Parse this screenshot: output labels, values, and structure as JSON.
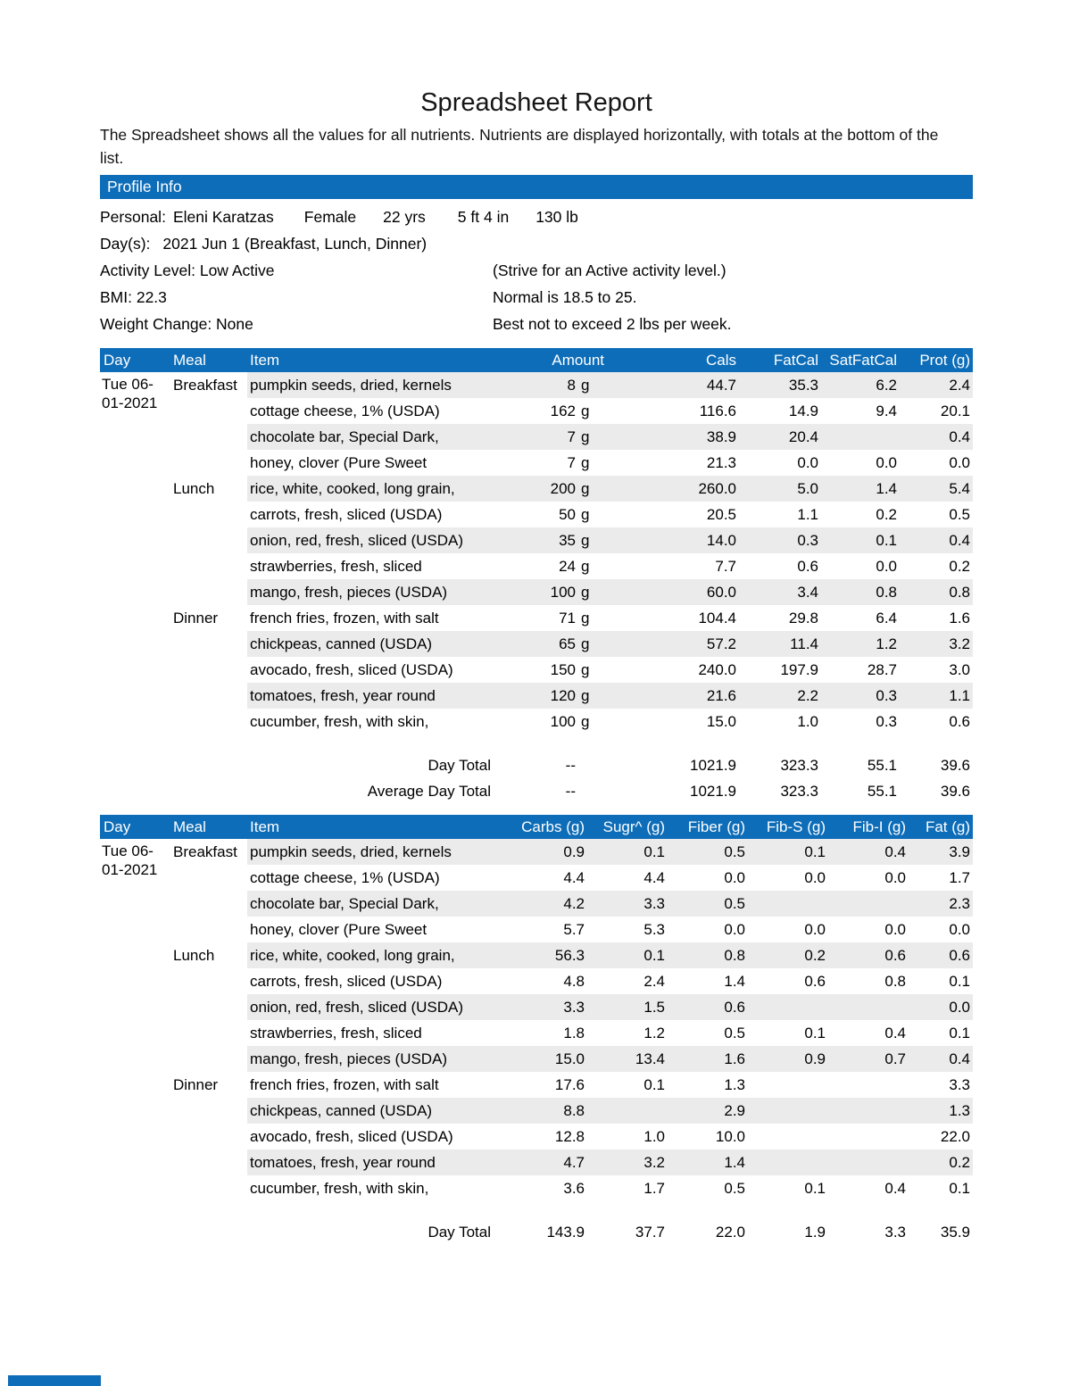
{
  "page": {
    "title": "Spreadsheet Report",
    "description": "The Spreadsheet shows all the values for all nutrients. Nutrients are displayed horizontally, with totals at the bottom of the list."
  },
  "colors": {
    "header_blue": "#0e6db8",
    "row_stripe": "#ebebeb",
    "total_rule": "#4a4a4a"
  },
  "profile": {
    "section_title": "Profile Info",
    "personal_label": "Personal:",
    "personal_name": "Eleni Karatzas",
    "personal_sex": "Female",
    "personal_age": "22 yrs",
    "personal_height": "5 ft 4 in",
    "personal_weight": "130 lb",
    "days_label": "Day(s):",
    "days_value": "2021 Jun 1 (Breakfast, Lunch, Dinner)",
    "rows": [
      {
        "left": "Activity Level: Low Active",
        "right": "(Strive for an Active activity level.)"
      },
      {
        "left": "BMI: 22.3",
        "right": "Normal is 18.5 to 25."
      },
      {
        "left": "Weight Change: None",
        "right": "Best not to exceed 2 lbs per week."
      }
    ]
  },
  "table1": {
    "headers": [
      "Day",
      "Meal",
      "Item",
      "Amount",
      "Cals",
      "FatCal",
      "SatFatCal",
      "Prot (g)"
    ],
    "day": "Tue 06-01-2021",
    "rows": [
      {
        "meal": "Breakfast",
        "item": "pumpkin seeds, dried, kernels",
        "amount": "8",
        "unit": "g",
        "values": [
          "44.7",
          "35.3",
          "6.2",
          "2.4"
        ]
      },
      {
        "meal": "",
        "item": "cottage cheese, 1% (USDA)",
        "amount": "162",
        "unit": "g",
        "values": [
          "116.6",
          "14.9",
          "9.4",
          "20.1"
        ]
      },
      {
        "meal": "",
        "item": "chocolate bar, Special Dark,",
        "amount": "7",
        "unit": "g",
        "values": [
          "38.9",
          "20.4",
          "",
          "0.4"
        ]
      },
      {
        "meal": "",
        "item": "honey, clover (Pure Sweet",
        "amount": "7",
        "unit": "g",
        "values": [
          "21.3",
          "0.0",
          "0.0",
          "0.0"
        ]
      },
      {
        "meal": "Lunch",
        "item": "rice, white, cooked, long grain,",
        "amount": "200",
        "unit": "g",
        "values": [
          "260.0",
          "5.0",
          "1.4",
          "5.4"
        ]
      },
      {
        "meal": "",
        "item": "carrots, fresh, sliced (USDA)",
        "amount": "50",
        "unit": "g",
        "values": [
          "20.5",
          "1.1",
          "0.2",
          "0.5"
        ]
      },
      {
        "meal": "",
        "item": "onion, red, fresh, sliced (USDA)",
        "amount": "35",
        "unit": "g",
        "values": [
          "14.0",
          "0.3",
          "0.1",
          "0.4"
        ]
      },
      {
        "meal": "",
        "item": "strawberries, fresh, sliced",
        "amount": "24",
        "unit": "g",
        "values": [
          "7.7",
          "0.6",
          "0.0",
          "0.2"
        ]
      },
      {
        "meal": "",
        "item": "mango, fresh, pieces (USDA)",
        "amount": "100",
        "unit": "g",
        "values": [
          "60.0",
          "3.4",
          "0.8",
          "0.8"
        ]
      },
      {
        "meal": "Dinner",
        "item": "french fries, frozen, with salt",
        "amount": "71",
        "unit": "g",
        "values": [
          "104.4",
          "29.8",
          "6.4",
          "1.6"
        ]
      },
      {
        "meal": "",
        "item": "chickpeas, canned (USDA)",
        "amount": "65",
        "unit": "g",
        "values": [
          "57.2",
          "11.4",
          "1.2",
          "3.2"
        ]
      },
      {
        "meal": "",
        "item": "avocado, fresh, sliced (USDA)",
        "amount": "150",
        "unit": "g",
        "values": [
          "240.0",
          "197.9",
          "28.7",
          "3.0"
        ]
      },
      {
        "meal": "",
        "item": "tomatoes, fresh, year round",
        "amount": "120",
        "unit": "g",
        "values": [
          "21.6",
          "2.2",
          "0.3",
          "1.1"
        ]
      },
      {
        "meal": "",
        "item": "cucumber, fresh, with skin,",
        "amount": "100",
        "unit": "g",
        "values": [
          "15.0",
          "1.0",
          "0.3",
          "0.6"
        ]
      }
    ],
    "totals": [
      {
        "label": "Day Total",
        "amount": "--",
        "values": [
          "1021.9",
          "323.3",
          "55.1",
          "39.6"
        ]
      },
      {
        "label": "Average Day Total",
        "amount": "--",
        "values": [
          "1021.9",
          "323.3",
          "55.1",
          "39.6"
        ]
      }
    ]
  },
  "table2": {
    "headers": [
      "Day",
      "Meal",
      "Item",
      "Carbs (g)",
      "Sugr^ (g)",
      "Fiber (g)",
      "Fib-S (g)",
      "Fib-I (g)",
      "Fat (g)"
    ],
    "day": "Tue 06-01-2021",
    "rows": [
      {
        "meal": "Breakfast",
        "item": "pumpkin seeds, dried, kernels",
        "values": [
          "0.9",
          "0.1",
          "0.5",
          "0.1",
          "0.4",
          "3.9"
        ]
      },
      {
        "meal": "",
        "item": "cottage cheese, 1% (USDA)",
        "values": [
          "4.4",
          "4.4",
          "0.0",
          "0.0",
          "0.0",
          "1.7"
        ]
      },
      {
        "meal": "",
        "item": "chocolate bar, Special Dark,",
        "values": [
          "4.2",
          "3.3",
          "0.5",
          "",
          "",
          "2.3"
        ]
      },
      {
        "meal": "",
        "item": "honey, clover (Pure Sweet",
        "values": [
          "5.7",
          "5.3",
          "0.0",
          "0.0",
          "0.0",
          "0.0"
        ]
      },
      {
        "meal": "Lunch",
        "item": "rice, white, cooked, long grain,",
        "values": [
          "56.3",
          "0.1",
          "0.8",
          "0.2",
          "0.6",
          "0.6"
        ]
      },
      {
        "meal": "",
        "item": "carrots, fresh, sliced (USDA)",
        "values": [
          "4.8",
          "2.4",
          "1.4",
          "0.6",
          "0.8",
          "0.1"
        ]
      },
      {
        "meal": "",
        "item": "onion, red, fresh, sliced (USDA)",
        "values": [
          "3.3",
          "1.5",
          "0.6",
          "",
          "",
          "0.0"
        ]
      },
      {
        "meal": "",
        "item": "strawberries, fresh, sliced",
        "values": [
          "1.8",
          "1.2",
          "0.5",
          "0.1",
          "0.4",
          "0.1"
        ]
      },
      {
        "meal": "",
        "item": "mango, fresh, pieces (USDA)",
        "values": [
          "15.0",
          "13.4",
          "1.6",
          "0.9",
          "0.7",
          "0.4"
        ]
      },
      {
        "meal": "Dinner",
        "item": "french fries, frozen, with salt",
        "values": [
          "17.6",
          "0.1",
          "1.3",
          "",
          "",
          "3.3"
        ]
      },
      {
        "meal": "",
        "item": "chickpeas, canned (USDA)",
        "values": [
          "8.8",
          "",
          "2.9",
          "",
          "",
          "1.3"
        ]
      },
      {
        "meal": "",
        "item": "avocado, fresh, sliced (USDA)",
        "values": [
          "12.8",
          "1.0",
          "10.0",
          "",
          "",
          "22.0"
        ]
      },
      {
        "meal": "",
        "item": "tomatoes, fresh, year round",
        "values": [
          "4.7",
          "3.2",
          "1.4",
          "",
          "",
          "0.2"
        ]
      },
      {
        "meal": "",
        "item": "cucumber, fresh, with skin,",
        "values": [
          "3.6",
          "1.7",
          "0.5",
          "0.1",
          "0.4",
          "0.1"
        ]
      }
    ],
    "totals": [
      {
        "label": "Day Total",
        "values": [
          "143.9",
          "37.7",
          "22.0",
          "1.9",
          "3.3",
          "35.9"
        ]
      }
    ]
  }
}
